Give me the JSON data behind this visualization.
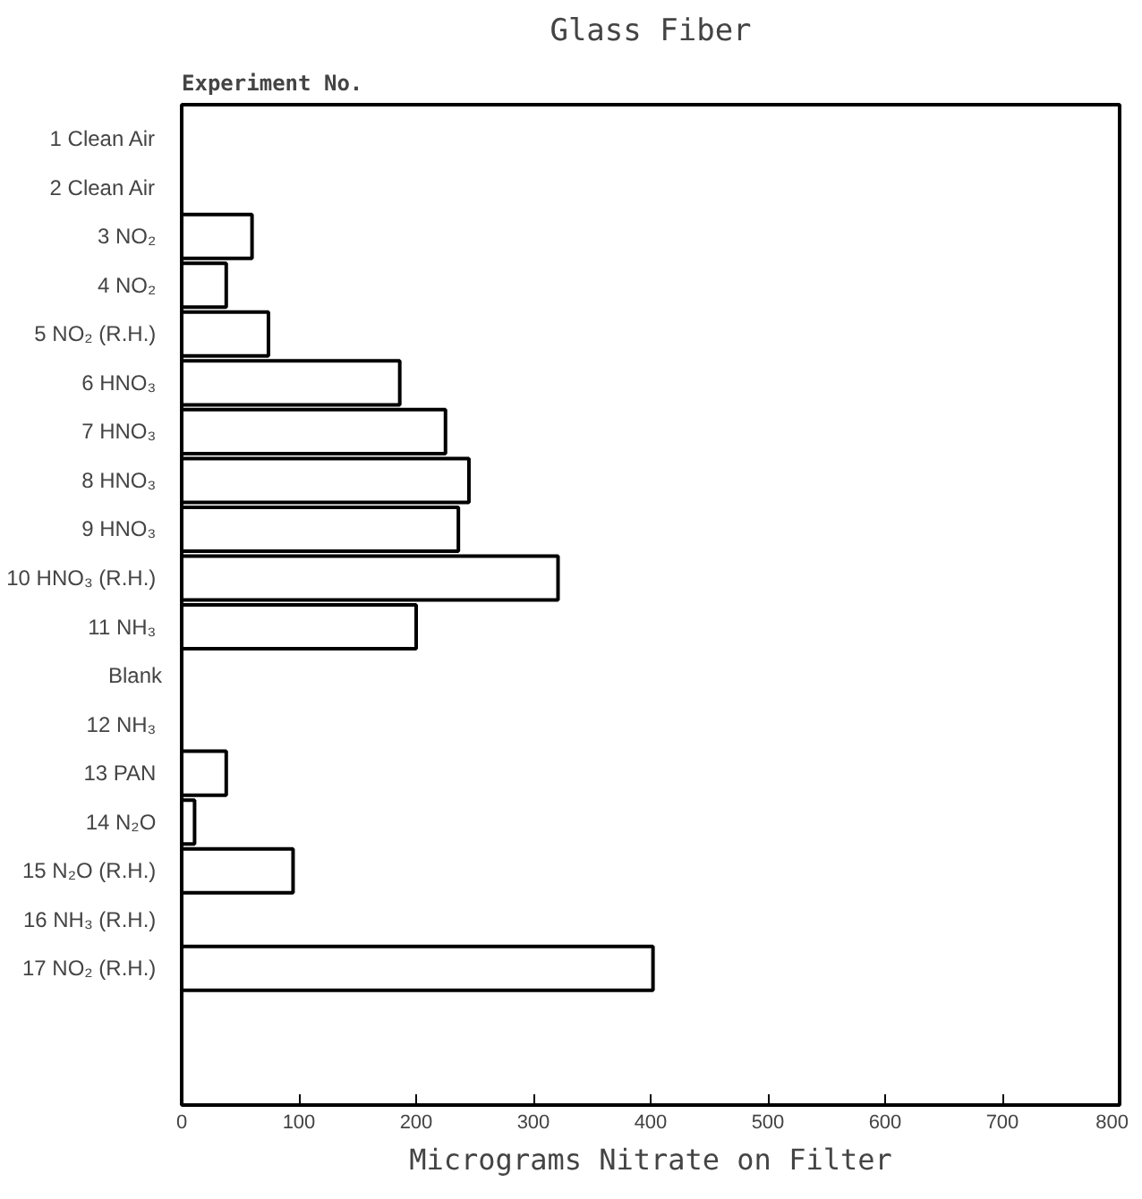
{
  "chart_data": {
    "type": "bar",
    "orientation": "horizontal",
    "title": "Glass Fiber",
    "ylabel": "Experiment No.",
    "xlabel": "Micrograms Nitrate on Filter",
    "categories": [
      "1  Clean Air",
      "2  Clean Air",
      "3  NO₂",
      "4  NO₂",
      "5  NO₂ (R.H.)",
      "6  HNO₃",
      "7  HNO₃",
      "8  HNO₃",
      "9  HNO₃",
      "10  HNO₃ (R.H.)",
      "11  NH₃",
      "Blank",
      "12  NH₃",
      "13  PAN",
      "14  N₂O",
      "15  N₂O (R.H.)",
      "16  NH₃ (R.H.)",
      "17  NO₂ (R.H.)"
    ],
    "values": [
      0,
      0,
      60,
      38,
      74,
      186,
      225,
      245,
      236,
      321,
      200,
      0,
      0,
      38,
      11,
      95,
      0,
      402
    ],
    "color": "#ffffff",
    "xlim": [
      0,
      800
    ],
    "xticks": [
      0,
      100,
      200,
      300,
      400,
      500,
      600,
      700,
      800
    ],
    "grid": false
  }
}
